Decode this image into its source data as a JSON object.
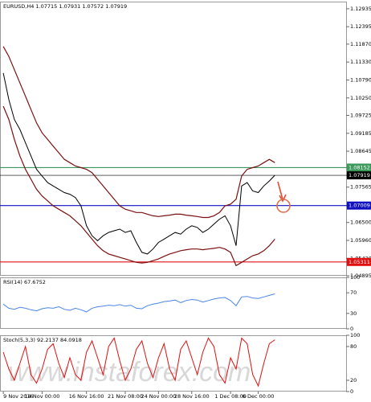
{
  "watermark": "www.instaforex.com",
  "chart_data": [
    {
      "type": "line",
      "title": "EURUSD,H4 1.07715 1.07931 1.07572 1.07919",
      "xlim": [
        -0.6,
        62
      ],
      "ylim": [
        1.04895,
        1.1315
      ],
      "xticks": [
        {
          "value": 0,
          "label": "9 Nov 2016"
        },
        {
          "value": 7,
          "label": "14 Nov 00:00"
        },
        {
          "value": 15,
          "label": "16 Nov 16:00"
        },
        {
          "value": 22,
          "label": "21 Nov 08:00"
        },
        {
          "value": 28,
          "label": "24 Nov 00:00"
        },
        {
          "value": 34,
          "label": "28 Nov 16:00"
        },
        {
          "value": 41,
          "label": "1 Dec 08:00"
        },
        {
          "value": 46,
          "label": "6 Dec 00:00"
        }
      ],
      "yticks": [
        1.12935,
        1.12395,
        {
          "value": 1.1187,
          "label": "1.11870"
        },
        {
          "value": 1.1133,
          "label": "1.11330"
        },
        {
          "value": 1.1079,
          "label": "1.10790"
        },
        {
          "value": 1.1025,
          "label": "1.10250"
        },
        1.09725,
        1.09185,
        1.08645,
        1.07565,
        {
          "value": 1.065,
          "label": "1.06500"
        },
        {
          "value": 1.0596,
          "label": "1.05960"
        },
        {
          "value": 1.0542,
          "label": "1.05420"
        },
        1.04895
      ],
      "levels": [
        {
          "value": 1.08152,
          "color": "#3c9a5c"
        },
        {
          "value": 1.07919,
          "color": "#000000"
        },
        {
          "value": 1.07009,
          "color": "#1010c0"
        },
        {
          "value": 1.05311,
          "color": "#e01010"
        }
      ],
      "series": [
        {
          "color": "#000000",
          "values": [
            1.11,
            1.102,
            1.096,
            1.093,
            1.089,
            1.085,
            1.081,
            1.079,
            1.077,
            1.076,
            1.075,
            1.074,
            1.0735,
            1.0725,
            1.07,
            1.064,
            1.061,
            1.0595,
            1.061,
            1.062,
            1.0625,
            1.063,
            1.062,
            1.0625,
            1.059,
            1.056,
            1.0555,
            1.057,
            1.059,
            1.06,
            1.061,
            1.062,
            1.0615,
            1.063,
            1.064,
            1.0635,
            1.062,
            1.063,
            1.0645,
            1.066,
            1.067,
            1.064,
            1.058,
            1.076,
            1.077,
            1.0745,
            1.074,
            1.076,
            1.0775,
            1.0792
          ]
        },
        {
          "color": "#7a1010",
          "values": [
            1.118,
            1.115,
            1.111,
            1.107,
            1.103,
            1.099,
            1.095,
            1.092,
            1.09,
            1.088,
            1.086,
            1.084,
            1.083,
            1.082,
            1.0815,
            1.081,
            1.08,
            1.078,
            1.076,
            1.074,
            1.072,
            1.07,
            1.069,
            1.0685,
            1.068,
            1.068,
            1.0675,
            1.067,
            1.0668,
            1.067,
            1.0672,
            1.0675,
            1.0675,
            1.0672,
            1.067,
            1.0668,
            1.0665,
            1.0665,
            1.067,
            1.068,
            1.07,
            1.0705,
            1.072,
            1.079,
            1.081,
            1.0815,
            1.082,
            1.083,
            1.084,
            1.083
          ]
        },
        {
          "color": "#7a1010",
          "values": [
            1.1,
            1.096,
            1.09,
            1.085,
            1.081,
            1.078,
            1.075,
            1.073,
            1.0715,
            1.07,
            1.069,
            1.068,
            1.067,
            1.0655,
            1.064,
            1.062,
            1.06,
            1.058,
            1.0565,
            1.0555,
            1.055,
            1.0545,
            1.054,
            1.0535,
            1.053,
            1.0528,
            1.053,
            1.0535,
            1.054,
            1.0548,
            1.0555,
            1.056,
            1.0565,
            1.0568,
            1.057,
            1.057,
            1.0568,
            1.057,
            1.0572,
            1.0575,
            1.057,
            1.056,
            1.052,
            1.053,
            1.054,
            1.055,
            1.0555,
            1.0565,
            1.058,
            1.06
          ]
        }
      ]
    },
    {
      "type": "line",
      "title": "RSI(14) 67.6752",
      "xlim": [
        -0.6,
        62
      ],
      "ylim": [
        0,
        100
      ],
      "yticks": [
        0,
        30,
        70,
        100
      ],
      "series": [
        {
          "color": "#4a86e8",
          "values": [
            48,
            40,
            38,
            42,
            40,
            37,
            35,
            39,
            41,
            40,
            43,
            38,
            36,
            40,
            37,
            33,
            40,
            43,
            44,
            46,
            45,
            47,
            44,
            46,
            40,
            39,
            45,
            48,
            50,
            53,
            54,
            56,
            51,
            55,
            57,
            56,
            52,
            55,
            58,
            60,
            61,
            55,
            45,
            62,
            63,
            60,
            59,
            62,
            65,
            68
          ]
        }
      ]
    },
    {
      "type": "line",
      "title": "Stoch(5,3,3) 92.2137 84.0918",
      "xlim": [
        -0.6,
        62
      ],
      "ylim": [
        0,
        100
      ],
      "yticks": [
        0,
        20,
        80,
        100
      ],
      "series": [
        {
          "color": "#e01010",
          "values": [
            70,
            40,
            20,
            50,
            80,
            30,
            15,
            40,
            75,
            85,
            50,
            25,
            60,
            30,
            20,
            70,
            90,
            60,
            30,
            80,
            95,
            55,
            20,
            40,
            75,
            90,
            50,
            25,
            60,
            85,
            40,
            20,
            75,
            90,
            60,
            30,
            70,
            95,
            80,
            30,
            15,
            60,
            40,
            95,
            85,
            30,
            10,
            50,
            85,
            92
          ]
        }
      ]
    }
  ]
}
